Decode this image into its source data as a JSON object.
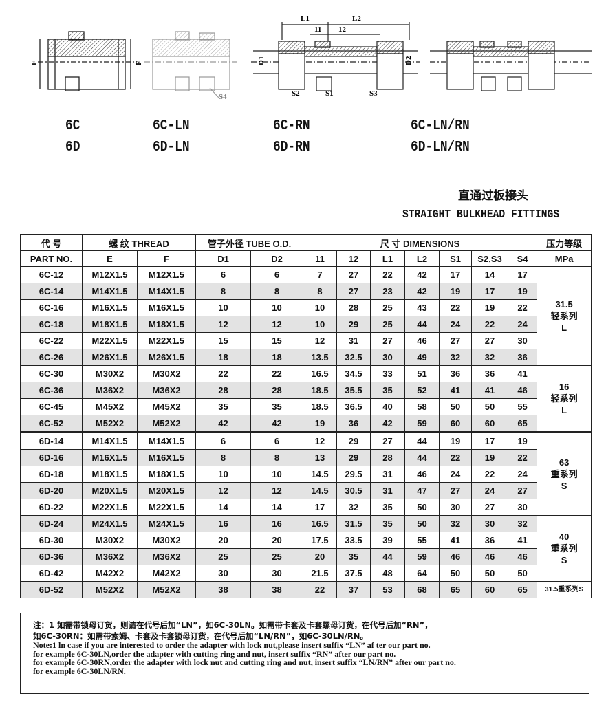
{
  "diagram_labels": {
    "E": "E",
    "F": "F",
    "S4": "S4",
    "L1": "L1",
    "L2": "L2",
    "l1": "11",
    "l2": "12",
    "D1": "D1",
    "D2": "D2",
    "S1": "S1",
    "S2": "S2",
    "S3": "S3"
  },
  "models": [
    {
      "top": "6C",
      "bottom": "6D"
    },
    {
      "top": "6C-LN",
      "bottom": "6D-LN"
    },
    {
      "top": "6C-RN",
      "bottom": "6D-RN"
    },
    {
      "top": "6C-LN/RN",
      "bottom": "6D-LN/RN"
    }
  ],
  "title": {
    "cn": "直通过板接头",
    "en": "STRAIGHT BULKHEAD FITTINGS"
  },
  "table": {
    "header1": [
      "代  号",
      "螺  纹  THREAD",
      "管子外径 TUBE O.D.",
      "尺  寸    DIMENSIONS",
      "压力等级"
    ],
    "header2": [
      "PART  NO.",
      "E",
      "F",
      "D1",
      "D2",
      "11",
      "12",
      "L1",
      "L2",
      "S1",
      "S2,S3",
      "S4",
      "MPa"
    ],
    "rows": [
      [
        "6C-12",
        "M12X1.5",
        "M12X1.5",
        "6",
        "6",
        "7",
        "27",
        "22",
        "42",
        "17",
        "14",
        "17"
      ],
      [
        "6C-14",
        "M14X1.5",
        "M14X1.5",
        "8",
        "8",
        "8",
        "27",
        "23",
        "42",
        "19",
        "17",
        "19"
      ],
      [
        "6C-16",
        "M16X1.5",
        "M16X1.5",
        "10",
        "10",
        "10",
        "28",
        "25",
        "43",
        "22",
        "19",
        "22"
      ],
      [
        "6C-18",
        "M18X1.5",
        "M18X1.5",
        "12",
        "12",
        "10",
        "29",
        "25",
        "44",
        "24",
        "22",
        "24"
      ],
      [
        "6C-22",
        "M22X1.5",
        "M22X1.5",
        "15",
        "15",
        "12",
        "31",
        "27",
        "46",
        "27",
        "27",
        "30"
      ],
      [
        "6C-26",
        "M26X1.5",
        "M26X1.5",
        "18",
        "18",
        "13.5",
        "32.5",
        "30",
        "49",
        "32",
        "32",
        "36"
      ],
      [
        "6C-30",
        "M30X2",
        "M30X2",
        "22",
        "22",
        "16.5",
        "34.5",
        "33",
        "51",
        "36",
        "36",
        "41"
      ],
      [
        "6C-36",
        "M36X2",
        "M36X2",
        "28",
        "28",
        "18.5",
        "35.5",
        "35",
        "52",
        "41",
        "41",
        "46"
      ],
      [
        "6C-45",
        "M45X2",
        "M45X2",
        "35",
        "35",
        "18.5",
        "36.5",
        "40",
        "58",
        "50",
        "50",
        "55"
      ],
      [
        "6C-52",
        "M52X2",
        "M52X2",
        "42",
        "42",
        "19",
        "36",
        "42",
        "59",
        "60",
        "60",
        "65"
      ],
      [
        "6D-14",
        "M14X1.5",
        "M14X1.5",
        "6",
        "6",
        "12",
        "29",
        "27",
        "44",
        "19",
        "17",
        "19"
      ],
      [
        "6D-16",
        "M16X1.5",
        "M16X1.5",
        "8",
        "8",
        "13",
        "29",
        "28",
        "44",
        "22",
        "19",
        "22"
      ],
      [
        "6D-18",
        "M18X1.5",
        "M18X1.5",
        "10",
        "10",
        "14.5",
        "29.5",
        "31",
        "46",
        "24",
        "22",
        "24"
      ],
      [
        "6D-20",
        "M20X1.5",
        "M20X1.5",
        "12",
        "12",
        "14.5",
        "30.5",
        "31",
        "47",
        "27",
        "24",
        "27"
      ],
      [
        "6D-22",
        "M22X1.5",
        "M22X1.5",
        "14",
        "14",
        "17",
        "32",
        "35",
        "50",
        "30",
        "27",
        "30"
      ],
      [
        "6D-24",
        "M24X1.5",
        "M24X1.5",
        "16",
        "16",
        "16.5",
        "31.5",
        "35",
        "50",
        "32",
        "30",
        "32"
      ],
      [
        "6D-30",
        "M30X2",
        "M30X2",
        "20",
        "20",
        "17.5",
        "33.5",
        "39",
        "55",
        "41",
        "36",
        "41"
      ],
      [
        "6D-36",
        "M36X2",
        "M36X2",
        "25",
        "25",
        "20",
        "35",
        "44",
        "59",
        "46",
        "46",
        "46"
      ],
      [
        "6D-42",
        "M42X2",
        "M42X2",
        "30",
        "30",
        "21.5",
        "37.5",
        "48",
        "64",
        "50",
        "50",
        "50"
      ],
      [
        "6D-52",
        "M52X2",
        "M52X2",
        "38",
        "38",
        "22",
        "37",
        "53",
        "68",
        "65",
        "60",
        "65"
      ]
    ],
    "pressure_groups": [
      {
        "start": 0,
        "span": 6,
        "lines": [
          "31.5",
          "轻系列",
          "L"
        ]
      },
      {
        "start": 6,
        "span": 4,
        "lines": [
          "16",
          "轻系列",
          "L"
        ]
      },
      {
        "start": 10,
        "span": 5,
        "lines": [
          "63",
          "重系列",
          "S"
        ]
      },
      {
        "start": 15,
        "span": 4,
        "lines": [
          "40",
          "重系列",
          "S"
        ]
      },
      {
        "start": 19,
        "span": 1,
        "lines": [
          "31.5重系列S"
        ]
      }
    ]
  },
  "notes": {
    "cn": [
      "注：1 如需带锁母订货，则请在代号后加“LN”，如6C-30LN。如需带卡套及卡套螺母订货，在代号后加“RN”，",
      "如6C-30RN：如需带索姆、卡套及卡套锁母订货，在代号后加“LN/RN”，如6C-30LN/RN。"
    ],
    "en": [
      "Note:1 ln case if you are interested to order the adapter with lock nut,please insert suffix “LN” af ter our part no.",
      "for example 6C-30LN,order the adapter with cutting ring and nut, insert suffix “RN” after our part no.",
      "for example 6C-30RN,order the adapter with lock nut and cutting ring and nut, insert suffix “LN/RN” after our part no.",
      "for example  6C-30LN/RN."
    ]
  }
}
